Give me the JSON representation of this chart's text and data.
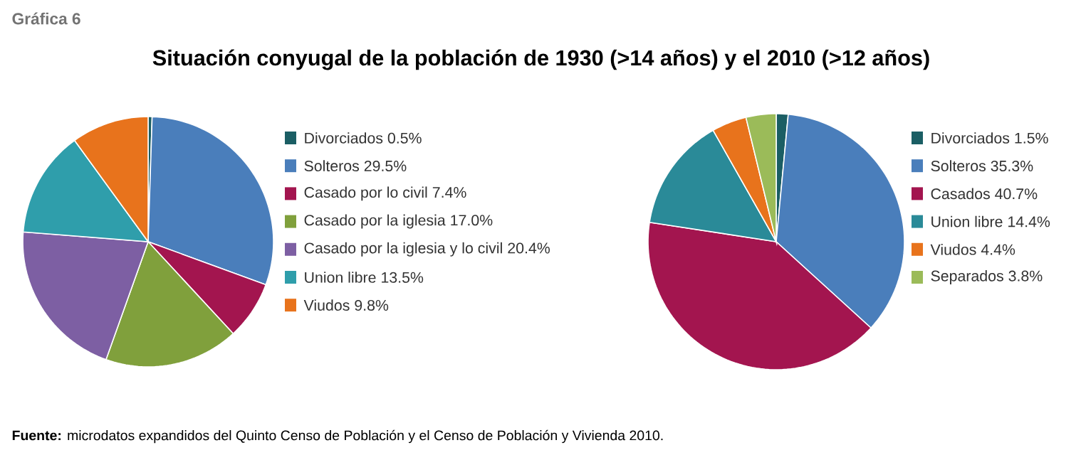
{
  "chart_data": [
    {
      "type": "pie",
      "title": "Situación conyugal de la población de 1930 (>14 años) y el 2010 (>12 años)",
      "categories": [
        "Divorciados",
        "Solteros",
        "Casado por lo civil",
        "Casado por la iglesia",
        "Casado por la iglesia y lo civil",
        "Union libre",
        "Viudos"
      ],
      "values": [
        0.5,
        29.5,
        7.4,
        17.0,
        20.4,
        13.5,
        9.8
      ],
      "value_labels": [
        "0.5%",
        "29.5%",
        "7.4%",
        "17.0%",
        "20.4%",
        "13.5%",
        "9.8%"
      ],
      "colors": [
        "#1b5e64",
        "#4a7ebb",
        "#a3154f",
        "#80a03c",
        "#7d5fa3",
        "#2f9eab",
        "#e8731c"
      ],
      "legend": "right",
      "annotations": [
        "Gráfica 6",
        "**Fuente:** microdatos expandidos del Quinto Censo de Población y el Censo de Población y Vivienda 2010."
      ]
    },
    {
      "type": "pie",
      "categories": [
        "Divorciados",
        "Solteros",
        "Casados",
        "Union libre",
        "Viudos",
        "Separados"
      ],
      "values": [
        1.5,
        35.3,
        40.7,
        14.4,
        4.4,
        3.8
      ],
      "value_labels": [
        "1.5%",
        "35.3%",
        "40.7%",
        "14.4%",
        "4.4%",
        "3.8%"
      ],
      "colors": [
        "#1b5e64",
        "#4a7ebb",
        "#a3154f",
        "#2a8a98",
        "#e8731c",
        "#9bbb59"
      ],
      "legend": "right"
    }
  ]
}
